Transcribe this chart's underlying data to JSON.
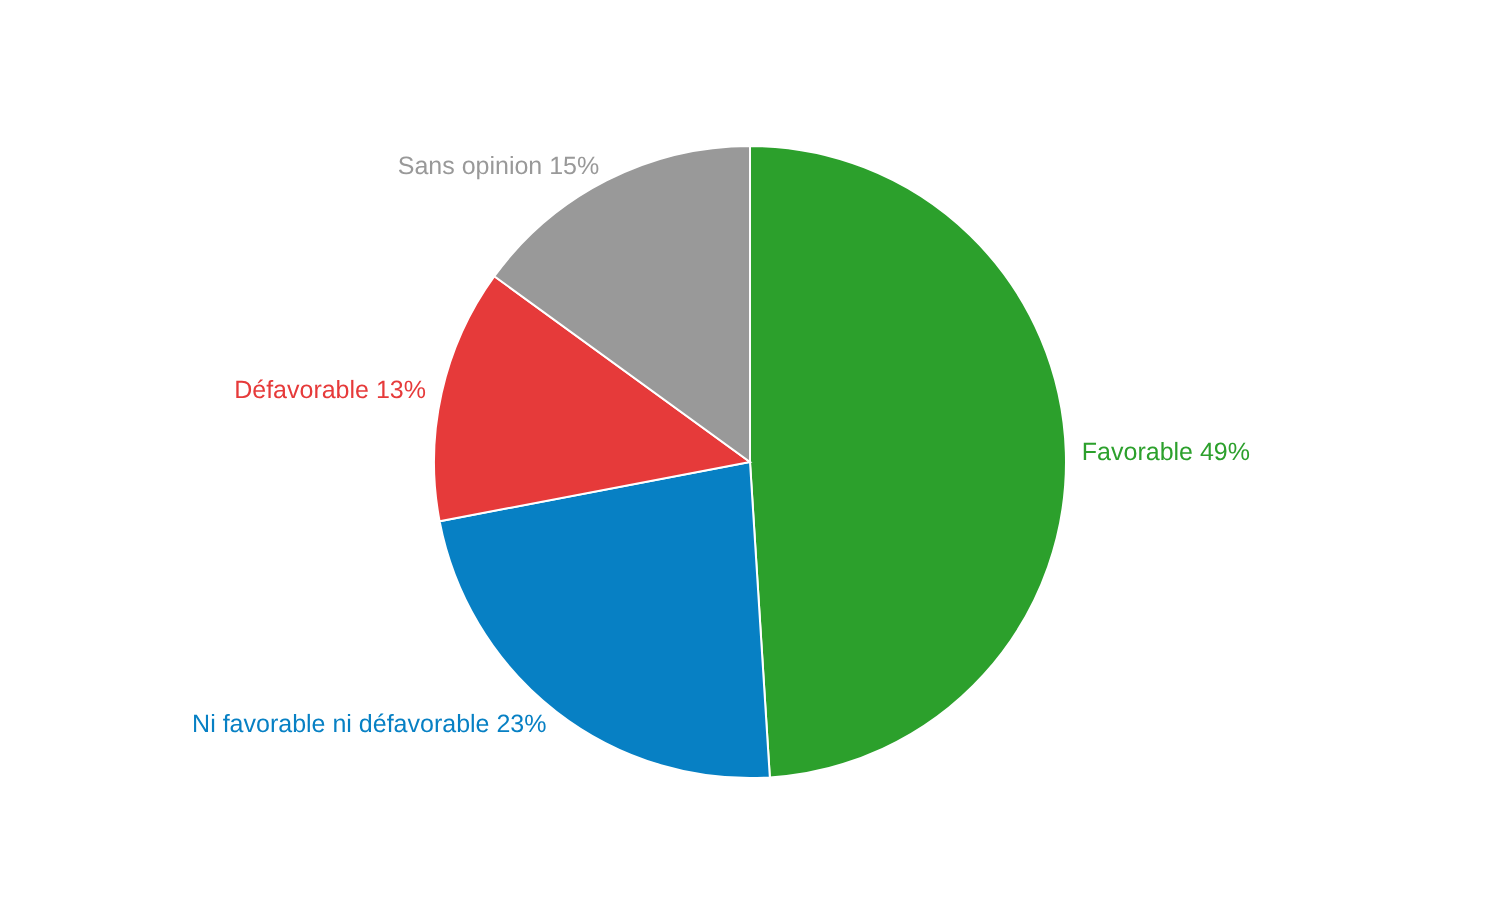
{
  "chart_data": {
    "type": "pie",
    "categories": [
      "Favorable",
      "Ni favorable ni défavorable",
      "Défavorable",
      "Sans opinion"
    ],
    "values": [
      49,
      23,
      13,
      15
    ],
    "value_labels": [
      "49%",
      "23%",
      "13%",
      "15%"
    ],
    "colors": [
      "#2ca02c",
      "#0780c4",
      "#e63a3a",
      "#999999"
    ]
  }
}
